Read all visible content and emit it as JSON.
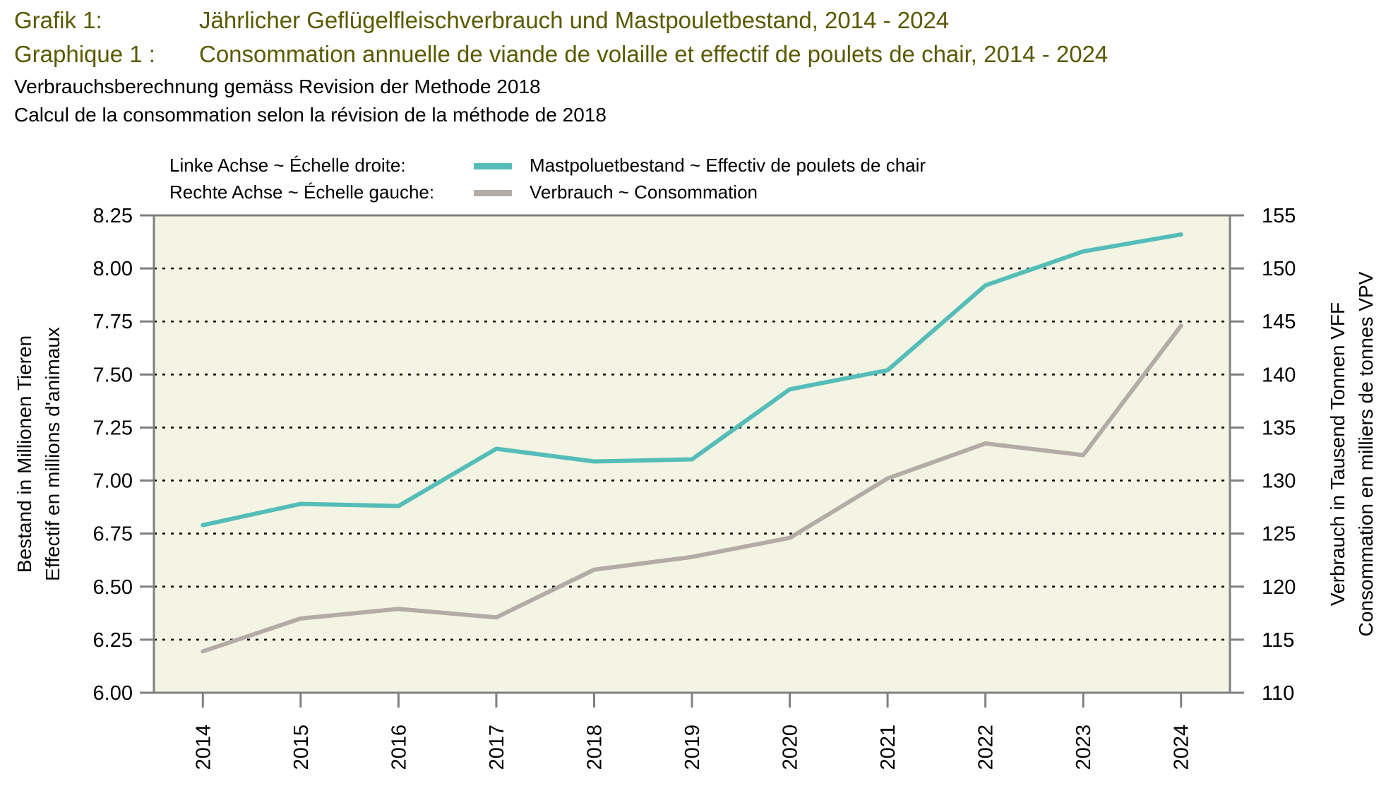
{
  "header": {
    "title_de_num": "Grafik 1:",
    "title_de": "Jährlicher Geflügelfleischverbrauch und Mastpouletbestand, 2014 - 2024",
    "title_fr_num": "Graphique 1 :",
    "title_fr": "Consommation annuelle de viande de volaille et effectif de poulets de chair, 2014 - 2024",
    "subtitle_de": "Verbrauchsberechnung gemäss Revision der Methode 2018",
    "subtitle_fr": "Calcul de la consommation selon la révision de la méthode de 2018"
  },
  "legend": {
    "left_axis_label": "Linke Achse ~ Échelle droite:",
    "right_axis_label": "Rechte Achse ~ Échelle gauche:",
    "series1_label": "Mastpoluetbestand   ~   Effectiv de poulets de chair",
    "series2_label": "Verbrauch   ~   Consommation"
  },
  "colors": {
    "teal": "#55bdb8",
    "gray": "#b3aca6",
    "plot_bg": "#f3f4e3",
    "axis": "#808080",
    "title": "#5a5a00"
  },
  "chart_data": {
    "type": "line",
    "title": "Jährlicher Geflügelfleischverbrauch und Mastpouletbestand, 2014 - 2024",
    "x": [
      "2014",
      "2015",
      "2016",
      "2017",
      "2018",
      "2019",
      "2020",
      "2021",
      "2022",
      "2023",
      "2024"
    ],
    "ylabel_left": [
      "Bestand in Millionen Tieren",
      "Effectif en millions d'animaux"
    ],
    "ylabel_right": [
      "Verbrauch in Tausend Tonnen VFF",
      "Consommation en milliers de tonnes VPV"
    ],
    "ylim_left": [
      6.0,
      8.25
    ],
    "ylim_right": [
      110,
      155
    ],
    "yticks_left": [
      "6.00",
      "6.25",
      "6.50",
      "6.75",
      "7.00",
      "7.25",
      "7.50",
      "7.75",
      "8.00",
      "8.25"
    ],
    "yticks_right": [
      "110",
      "115",
      "120",
      "125",
      "130",
      "135",
      "140",
      "145",
      "150",
      "155"
    ],
    "grid": "horizontal dotted",
    "legend_position": "top",
    "series": [
      {
        "name": "Mastpoluetbestand ~ Effectiv de poulets de chair",
        "axis": "left",
        "color": "#55bdb8",
        "values": [
          6.79,
          6.89,
          6.88,
          7.15,
          7.09,
          7.1,
          7.43,
          7.52,
          7.92,
          8.08,
          8.16
        ]
      },
      {
        "name": "Verbrauch ~ Consommation",
        "axis": "right",
        "color": "#b3aca6",
        "values": [
          113.9,
          117.0,
          117.9,
          117.1,
          121.6,
          122.8,
          124.6,
          130.2,
          133.5,
          132.4,
          144.6
        ]
      }
    ]
  }
}
